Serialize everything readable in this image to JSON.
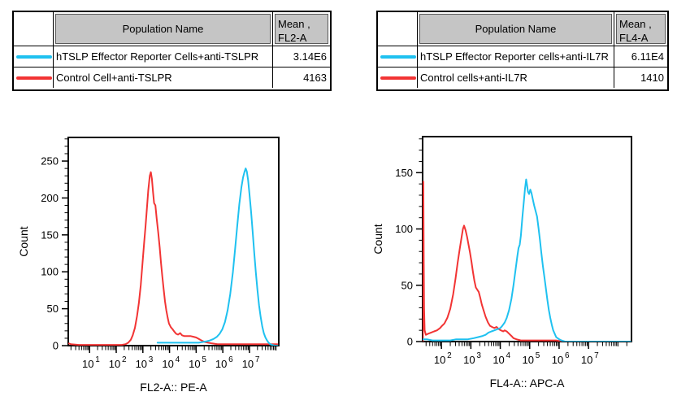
{
  "colors": {
    "series_cyan": "#1FC1F0",
    "series_red": "#F23434",
    "table_header_fill": "#C5C5C5",
    "axis": "#000000"
  },
  "panels": [
    {
      "table": {
        "header": {
          "population": "Population Name",
          "mean_line1": "Mean ,",
          "mean_line2": "FL2-A"
        },
        "rows": [
          {
            "color": "#1FC1F0",
            "name": "hTSLP Effector Reporter Cells+anti-TSLPR",
            "mean": "3.14E6"
          },
          {
            "color": "#F23434",
            "name": "Control Cell+anti-TSLPR",
            "mean": "4163"
          }
        ]
      }
    },
    {
      "table": {
        "header": {
          "population": "Population Name",
          "mean_line1": "Mean ,",
          "mean_line2": "FL4-A"
        },
        "rows": [
          {
            "color": "#1FC1F0",
            "name": "hTSLP Effector Reporter cells+anti-IL7R",
            "mean": "6.11E4"
          },
          {
            "color": "#F23434",
            "name": "Control cells+anti-IL7R",
            "mean": "1410"
          }
        ]
      }
    }
  ],
  "chart_data": [
    {
      "type": "line",
      "title": "",
      "xlabel": "FL2-A:: PE-A",
      "ylabel": "Count",
      "x_scale": "log10",
      "x_domain_log": [
        0.2,
        8.1
      ],
      "x_major_decades": [
        1,
        2,
        3,
        4,
        5,
        6,
        7
      ],
      "ylim": [
        0,
        282
      ],
      "y_ticks": [
        0,
        50,
        100,
        150,
        200,
        250
      ],
      "y_minor_step": 10,
      "grid": false,
      "legend_position": "none",
      "series": [
        {
          "name": "hTSLP Effector Reporter Cells+anti-TSLPR",
          "color": "#1FC1F0",
          "points": [
            [
              3.55,
              4
            ],
            [
              3.8,
              4
            ],
            [
              4.1,
              4
            ],
            [
              4.5,
              4
            ],
            [
              4.9,
              4
            ],
            [
              5.1,
              4
            ],
            [
              5.25,
              5
            ],
            [
              5.4,
              6
            ],
            [
              5.52,
              7
            ],
            [
              5.65,
              9
            ],
            [
              5.78,
              12
            ],
            [
              5.88,
              16
            ],
            [
              5.98,
              22
            ],
            [
              6.08,
              32
            ],
            [
              6.18,
              48
            ],
            [
              6.28,
              70
            ],
            [
              6.38,
              100
            ],
            [
              6.46,
              130
            ],
            [
              6.54,
              162
            ],
            [
              6.62,
              192
            ],
            [
              6.7,
              215
            ],
            [
              6.76,
              228
            ],
            [
              6.82,
              236
            ],
            [
              6.86,
              240
            ],
            [
              6.9,
              236
            ],
            [
              6.95,
              224
            ],
            [
              7.0,
              206
            ],
            [
              7.06,
              182
            ],
            [
              7.12,
              154
            ],
            [
              7.18,
              126
            ],
            [
              7.24,
              99
            ],
            [
              7.3,
              75
            ],
            [
              7.36,
              55
            ],
            [
              7.42,
              39
            ],
            [
              7.48,
              26
            ],
            [
              7.54,
              17
            ],
            [
              7.6,
              11
            ],
            [
              7.66,
              7
            ],
            [
              7.72,
              4
            ],
            [
              7.78,
              2
            ],
            [
              7.85,
              1
            ],
            [
              7.95,
              0
            ],
            [
              8.05,
              0
            ]
          ]
        },
        {
          "name": "Control Cell+anti-TSLPR",
          "color": "#F23434",
          "points": [
            [
              0.22,
              3
            ],
            [
              0.3,
              2
            ],
            [
              0.6,
              1
            ],
            [
              1.2,
              1
            ],
            [
              1.8,
              1
            ],
            [
              2.2,
              1
            ],
            [
              2.35,
              2
            ],
            [
              2.45,
              4
            ],
            [
              2.55,
              8
            ],
            [
              2.62,
              14
            ],
            [
              2.7,
              24
            ],
            [
              2.78,
              40
            ],
            [
              2.85,
              58
            ],
            [
              2.92,
              82
            ],
            [
              3.0,
              118
            ],
            [
              3.05,
              140
            ],
            [
              3.1,
              162
            ],
            [
              3.15,
              185
            ],
            [
              3.2,
              210
            ],
            [
              3.26,
              230
            ],
            [
              3.3,
              235
            ],
            [
              3.34,
              226
            ],
            [
              3.38,
              208
            ],
            [
              3.42,
              193
            ],
            [
              3.47,
              190
            ],
            [
              3.52,
              172
            ],
            [
              3.58,
              152
            ],
            [
              3.63,
              133
            ],
            [
              3.68,
              112
            ],
            [
              3.73,
              94
            ],
            [
              3.78,
              76
            ],
            [
              3.83,
              60
            ],
            [
              3.88,
              48
            ],
            [
              3.93,
              38
            ],
            [
              3.98,
              30
            ],
            [
              4.05,
              25
            ],
            [
              4.12,
              22
            ],
            [
              4.18,
              19
            ],
            [
              4.25,
              16
            ],
            [
              4.32,
              15
            ],
            [
              4.4,
              17
            ],
            [
              4.47,
              14
            ],
            [
              4.55,
              13
            ],
            [
              4.65,
              13
            ],
            [
              4.78,
              13
            ],
            [
              4.9,
              12
            ],
            [
              5.0,
              11
            ],
            [
              5.1,
              9
            ],
            [
              5.2,
              7
            ],
            [
              5.32,
              5
            ],
            [
              5.45,
              4
            ],
            [
              5.6,
              3
            ],
            [
              5.8,
              2
            ],
            [
              6.2,
              2
            ],
            [
              6.8,
              2
            ],
            [
              7.4,
              2
            ],
            [
              8.05,
              2
            ]
          ]
        }
      ]
    },
    {
      "type": "line",
      "title": "",
      "xlabel": "FL4-A:: APC-A",
      "ylabel": "Count",
      "x_scale": "log10",
      "x_domain_log": [
        1.36,
        8.46
      ],
      "x_major_decades": [
        2,
        3,
        4,
        5,
        6,
        7
      ],
      "ylim": [
        0,
        182
      ],
      "y_ticks": [
        0,
        50,
        100,
        150
      ],
      "y_minor_step": 10,
      "grid": false,
      "legend_position": "none",
      "series": [
        {
          "name": "hTSLP Effector Reporter cells+anti-IL7R",
          "color": "#1FC1F0",
          "points": [
            [
              1.37,
              2
            ],
            [
              1.5,
              2
            ],
            [
              1.7,
              1
            ],
            [
              1.9,
              1
            ],
            [
              2.1,
              1
            ],
            [
              2.3,
              1
            ],
            [
              2.5,
              2
            ],
            [
              2.7,
              2
            ],
            [
              2.9,
              2
            ],
            [
              3.1,
              3
            ],
            [
              3.25,
              4
            ],
            [
              3.4,
              5
            ],
            [
              3.5,
              6
            ],
            [
              3.6,
              8
            ],
            [
              3.7,
              9
            ],
            [
              3.8,
              10
            ],
            [
              3.9,
              11
            ],
            [
              4.0,
              12
            ],
            [
              4.07,
              14
            ],
            [
              4.15,
              17
            ],
            [
              4.22,
              21
            ],
            [
              4.3,
              28
            ],
            [
              4.38,
              38
            ],
            [
              4.45,
              50
            ],
            [
              4.52,
              64
            ],
            [
              4.58,
              76
            ],
            [
              4.62,
              83
            ],
            [
              4.66,
              86
            ],
            [
              4.7,
              94
            ],
            [
              4.75,
              110
            ],
            [
              4.8,
              124
            ],
            [
              4.84,
              136
            ],
            [
              4.88,
              144
            ],
            [
              4.91,
              139
            ],
            [
              4.94,
              133
            ],
            [
              4.98,
              131
            ],
            [
              5.02,
              135
            ],
            [
              5.06,
              132
            ],
            [
              5.1,
              127
            ],
            [
              5.15,
              121
            ],
            [
              5.2,
              116
            ],
            [
              5.25,
              111
            ],
            [
              5.3,
              101
            ],
            [
              5.35,
              90
            ],
            [
              5.4,
              78
            ],
            [
              5.45,
              67
            ],
            [
              5.5,
              57
            ],
            [
              5.55,
              47
            ],
            [
              5.6,
              37
            ],
            [
              5.65,
              28
            ],
            [
              5.7,
              21
            ],
            [
              5.75,
              15
            ],
            [
              5.8,
              10
            ],
            [
              5.85,
              7
            ],
            [
              5.9,
              4
            ],
            [
              5.95,
              3
            ],
            [
              6.0,
              2
            ],
            [
              6.08,
              1
            ],
            [
              6.2,
              0
            ],
            [
              8.44,
              0
            ]
          ]
        },
        {
          "name": "Control cells+anti-IL7R",
          "color": "#F23434",
          "points": [
            [
              1.37,
              0
            ],
            [
              1.385,
              142
            ],
            [
              1.4,
              70
            ],
            [
              1.41,
              30
            ],
            [
              1.43,
              10
            ],
            [
              1.47,
              6
            ],
            [
              1.55,
              7
            ],
            [
              1.65,
              8
            ],
            [
              1.75,
              9
            ],
            [
              1.85,
              10
            ],
            [
              1.95,
              12
            ],
            [
              2.02,
              14
            ],
            [
              2.1,
              16
            ],
            [
              2.2,
              21
            ],
            [
              2.3,
              29
            ],
            [
              2.4,
              42
            ],
            [
              2.48,
              56
            ],
            [
              2.55,
              70
            ],
            [
              2.62,
              82
            ],
            [
              2.68,
              92
            ],
            [
              2.73,
              100
            ],
            [
              2.77,
              103
            ],
            [
              2.82,
              99
            ],
            [
              2.87,
              93
            ],
            [
              2.92,
              86
            ],
            [
              2.97,
              79
            ],
            [
              3.02,
              71
            ],
            [
              3.07,
              62
            ],
            [
              3.12,
              54
            ],
            [
              3.17,
              48
            ],
            [
              3.22,
              46
            ],
            [
              3.27,
              44
            ],
            [
              3.32,
              39
            ],
            [
              3.37,
              33
            ],
            [
              3.43,
              28
            ],
            [
              3.5,
              22
            ],
            [
              3.58,
              17
            ],
            [
              3.65,
              14
            ],
            [
              3.72,
              13
            ],
            [
              3.8,
              12
            ],
            [
              3.87,
              13
            ],
            [
              3.95,
              11
            ],
            [
              4.02,
              10
            ],
            [
              4.1,
              9
            ],
            [
              4.15,
              10
            ],
            [
              4.22,
              9
            ],
            [
              4.3,
              7
            ],
            [
              4.38,
              5
            ],
            [
              4.45,
              3
            ],
            [
              4.55,
              2
            ],
            [
              4.7,
              1
            ],
            [
              5.0,
              1
            ],
            [
              5.5,
              1
            ],
            [
              5.9,
              1
            ],
            [
              6.1,
              0
            ],
            [
              8.44,
              0
            ]
          ]
        }
      ]
    }
  ]
}
